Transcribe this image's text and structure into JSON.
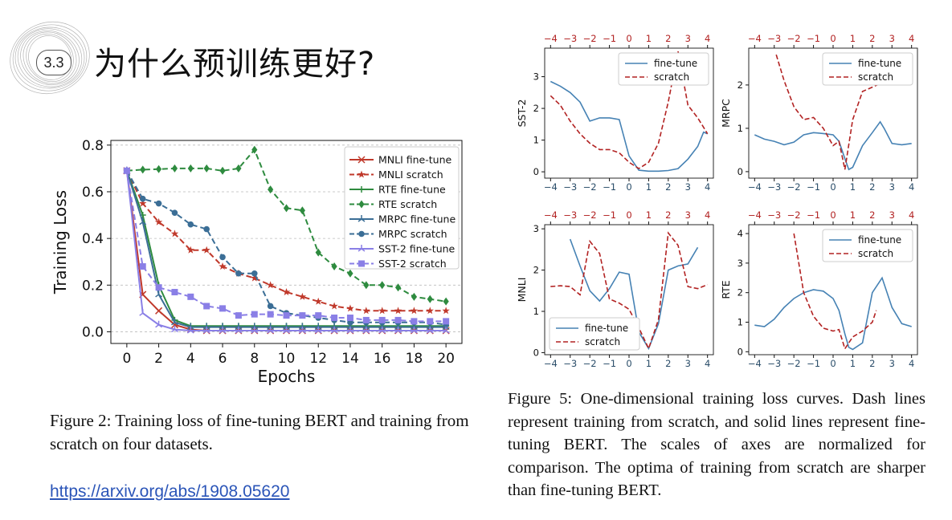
{
  "slide": {
    "section_number": "3.3",
    "title": "为什么预训练更好?",
    "link": "https://arxiv.org/abs/1908.05620"
  },
  "figure2": {
    "caption": "Figure 2: Training loss of fine-tuning BERT and training from scratch on four datasets."
  },
  "figure5": {
    "caption": "Figure 5: One-dimensional training loss curves. Dash lines represent training from scratch, and solid lines represent fine-tuning BERT. The scales of axes are normalized for comparison. The optima of training from scratch are sharper than fine-tuning BERT."
  },
  "colors": {
    "mnli": "#c0392b",
    "rte": "#2e8b3f",
    "mrpc": "#3b6e96",
    "sst2": "#8a7fe6",
    "finetune": "#4682b4",
    "scratch": "#b22222"
  },
  "chart_data": [
    {
      "type": "line",
      "title": "",
      "xlabel": "Epochs",
      "ylabel": "Training Loss",
      "xlim": [
        -1,
        21
      ],
      "ylim": [
        -0.05,
        0.82
      ],
      "xticks": [
        "0",
        "2",
        "4",
        "6",
        "8",
        "10",
        "12",
        "14",
        "16",
        "18",
        "20"
      ],
      "yticks": [
        "0.0",
        "0.2",
        "0.4",
        "0.6",
        "0.8"
      ],
      "grid": true,
      "legend_position": "top-right",
      "x": [
        0,
        1,
        2,
        3,
        4,
        5,
        6,
        7,
        8,
        9,
        10,
        11,
        12,
        13,
        14,
        15,
        16,
        17,
        18,
        19,
        20
      ],
      "series": [
        {
          "name": "MNLI fine-tune",
          "color": "#c0392b",
          "dash": false,
          "marker": "x",
          "values": [
            0.69,
            0.16,
            0.09,
            0.03,
            0.01,
            0.005,
            0.005,
            0.005,
            0.005,
            0.005,
            0.005,
            0.005,
            0.005,
            0.005,
            0.005,
            0.005,
            0.005,
            0.005,
            0.005,
            0.005,
            0.005
          ]
        },
        {
          "name": "MNLI scratch",
          "color": "#c0392b",
          "dash": true,
          "marker": "star",
          "values": [
            0.69,
            0.55,
            0.47,
            0.42,
            0.35,
            0.35,
            0.28,
            0.25,
            0.23,
            0.2,
            0.17,
            0.15,
            0.13,
            0.11,
            0.1,
            0.09,
            0.09,
            0.09,
            0.09,
            0.09,
            0.09
          ]
        },
        {
          "name": "RTE fine-tune",
          "color": "#2e8b3f",
          "dash": false,
          "marker": "plus",
          "values": [
            0.69,
            0.5,
            0.2,
            0.05,
            0.025,
            0.025,
            0.025,
            0.025,
            0.025,
            0.025,
            0.025,
            0.025,
            0.025,
            0.025,
            0.025,
            0.025,
            0.025,
            0.025,
            0.025,
            0.025,
            0.025
          ]
        },
        {
          "name": "RTE scratch",
          "color": "#2e8b3f",
          "dash": true,
          "marker": "diamond",
          "values": [
            0.69,
            0.695,
            0.697,
            0.7,
            0.7,
            0.7,
            0.69,
            0.7,
            0.78,
            0.61,
            0.53,
            0.52,
            0.34,
            0.28,
            0.25,
            0.2,
            0.2,
            0.19,
            0.15,
            0.14,
            0.13
          ]
        },
        {
          "name": "MRPC fine-tune",
          "color": "#3b6e96",
          "dash": false,
          "marker": "tri",
          "values": [
            0.69,
            0.47,
            0.16,
            0.04,
            0.02,
            0.02,
            0.02,
            0.02,
            0.02,
            0.02,
            0.02,
            0.02,
            0.02,
            0.02,
            0.02,
            0.02,
            0.02,
            0.02,
            0.02,
            0.02,
            0.02
          ]
        },
        {
          "name": "MRPC scratch",
          "color": "#3b6e96",
          "dash": true,
          "marker": "circle",
          "values": [
            0.69,
            0.57,
            0.55,
            0.51,
            0.46,
            0.44,
            0.32,
            0.25,
            0.25,
            0.11,
            0.08,
            0.07,
            0.06,
            0.05,
            0.04,
            0.04,
            0.04,
            0.04,
            0.04,
            0.04,
            0.03
          ]
        },
        {
          "name": "SST-2 fine-tune",
          "color": "#8a7fe6",
          "dash": false,
          "marker": "tri",
          "values": [
            0.69,
            0.08,
            0.03,
            0.01,
            0.005,
            0.005,
            0.005,
            0.005,
            0.005,
            0.005,
            0.005,
            0.005,
            0.005,
            0.005,
            0.005,
            0.005,
            0.005,
            0.005,
            0.005,
            0.005,
            0.005
          ]
        },
        {
          "name": "SST-2 scratch",
          "color": "#8a7fe6",
          "dash": true,
          "marker": "square",
          "values": [
            0.69,
            0.28,
            0.19,
            0.17,
            0.15,
            0.11,
            0.1,
            0.07,
            0.075,
            0.075,
            0.07,
            0.07,
            0.07,
            0.06,
            0.06,
            0.05,
            0.05,
            0.05,
            0.045,
            0.045,
            0.045
          ]
        }
      ]
    },
    {
      "type": "line",
      "title": "",
      "ylabel": "SST-2",
      "legend_position": "top-right",
      "xlim": [
        -4.3,
        4.3
      ],
      "ylim": [
        -0.2,
        3.9
      ],
      "xticks": [
        "−4",
        "−3",
        "−2",
        "−1",
        "0",
        "1",
        "2",
        "3",
        "4"
      ],
      "yticks": [
        "0",
        "1",
        "2",
        "3"
      ],
      "top_xticks": [
        "−4",
        "−3",
        "−2",
        "−1",
        "0",
        "1",
        "2",
        "3",
        "4"
      ],
      "series": [
        {
          "name": "fine-tune",
          "dash": false,
          "color": "#4682b4",
          "x": [
            -4,
            -3.5,
            -3,
            -2.5,
            -2,
            -1.5,
            -1,
            -0.5,
            0,
            0.5,
            1,
            1.5,
            2,
            2.5,
            3,
            3.5,
            3.8,
            4
          ],
          "values": [
            2.85,
            2.7,
            2.5,
            2.2,
            1.6,
            1.7,
            1.7,
            1.65,
            0.5,
            0.05,
            0.02,
            0.02,
            0.04,
            0.1,
            0.4,
            0.8,
            1.25,
            1.2
          ]
        },
        {
          "name": "scratch",
          "dash": true,
          "color": "#b22222",
          "x": [
            -4,
            -3.5,
            -3,
            -2.5,
            -2,
            -1.5,
            -1,
            -0.5,
            0,
            0.5,
            1,
            1.5,
            2,
            2.5,
            3,
            3.5,
            4
          ],
          "values": [
            2.4,
            2.1,
            1.6,
            1.2,
            0.9,
            0.7,
            0.7,
            0.6,
            0.3,
            0.1,
            0.3,
            0.9,
            2.2,
            3.8,
            2.1,
            1.7,
            1.2
          ]
        }
      ]
    },
    {
      "type": "line",
      "title": "",
      "ylabel": "MRPC",
      "legend_position": "top-right",
      "xlim": [
        -4.3,
        4.3
      ],
      "ylim": [
        -0.15,
        2.85
      ],
      "xticks": [
        "−4",
        "−3",
        "−2",
        "−1",
        "0",
        "1",
        "2",
        "3",
        "4"
      ],
      "yticks": [
        "0",
        "1",
        "2"
      ],
      "top_xticks": [
        "−4",
        "−3",
        "−2",
        "−1",
        "0",
        "1",
        "2",
        "3",
        "4"
      ],
      "series": [
        {
          "name": "fine-tune",
          "dash": false,
          "color": "#4682b4",
          "x": [
            -4,
            -3.5,
            -3,
            -2.5,
            -2,
            -1.5,
            -1,
            -0.5,
            0,
            0.3,
            0.6,
            0.8,
            1,
            1.5,
            2,
            2.4,
            2.6,
            3,
            3.5,
            4
          ],
          "values": [
            0.85,
            0.75,
            0.7,
            0.62,
            0.68,
            0.85,
            0.9,
            0.88,
            0.85,
            0.7,
            0.3,
            0.05,
            0.1,
            0.6,
            0.9,
            1.15,
            1.0,
            0.65,
            0.62,
            0.65
          ]
        },
        {
          "name": "scratch",
          "dash": true,
          "color": "#b22222",
          "x": [
            -2.9,
            -2.5,
            -2,
            -1.5,
            -1,
            -0.5,
            0,
            0.3,
            0.6,
            1,
            1.5,
            2,
            2.5,
            3
          ],
          "values": [
            2.7,
            2.1,
            1.5,
            1.2,
            1.25,
            1.0,
            0.6,
            0.7,
            0.05,
            1.2,
            1.85,
            1.95,
            2.05,
            2.15
          ]
        }
      ]
    },
    {
      "type": "line",
      "title": "",
      "ylabel": "MNLI",
      "legend_position": "bottom-left",
      "xlim": [
        -4.3,
        4.3
      ],
      "ylim": [
        -0.05,
        3.1
      ],
      "xticks": [
        "−4",
        "−3",
        "−2",
        "−1",
        "0",
        "1",
        "2",
        "3",
        "4"
      ],
      "yticks": [
        "0",
        "1",
        "2",
        "3"
      ],
      "top_xticks": [
        "−4",
        "−3",
        "−2",
        "−1",
        "0",
        "1",
        "2",
        "3",
        "4"
      ],
      "series": [
        {
          "name": "fine-tune",
          "dash": false,
          "color": "#4682b4",
          "x": [
            -3,
            -2.5,
            -2,
            -1.5,
            -1,
            -0.5,
            0,
            0.5,
            1,
            1.5,
            2,
            2.5,
            3,
            3.5
          ],
          "values": [
            2.75,
            2.1,
            1.5,
            1.25,
            1.55,
            1.95,
            1.9,
            0.5,
            0.1,
            0.7,
            2.0,
            2.1,
            2.15,
            2.55
          ]
        },
        {
          "name": "scratch",
          "dash": true,
          "color": "#b22222",
          "x": [
            -4,
            -3.5,
            -3,
            -2.5,
            -2,
            -1.5,
            -1,
            -0.5,
            0,
            0.5,
            1,
            1.5,
            2,
            2.5,
            3,
            3.5,
            4
          ],
          "values": [
            1.6,
            1.62,
            1.6,
            1.4,
            2.7,
            2.4,
            1.3,
            1.2,
            1.05,
            0.6,
            0.1,
            0.8,
            2.9,
            2.6,
            1.6,
            1.55,
            1.65
          ]
        }
      ]
    },
    {
      "type": "line",
      "title": "",
      "ylabel": "RTE",
      "legend_position": "top-right",
      "xlim": [
        -4.3,
        4.3
      ],
      "ylim": [
        -0.1,
        4.3
      ],
      "xticks": [
        "−4",
        "−3",
        "−2",
        "−1",
        "0",
        "1",
        "2",
        "3",
        "4"
      ],
      "yticks": [
        "0",
        "1",
        "2",
        "3",
        "4"
      ],
      "top_xticks": [
        "−4",
        "−3",
        "−2",
        "−1",
        "0",
        "1",
        "2",
        "3",
        "4"
      ],
      "series": [
        {
          "name": "fine-tune",
          "dash": false,
          "color": "#4682b4",
          "x": [
            -4,
            -3.5,
            -3,
            -2.5,
            -2,
            -1.5,
            -1,
            -0.5,
            0,
            0.3,
            0.6,
            0.8,
            1,
            1.5,
            2,
            2.5,
            3,
            3.5,
            4
          ],
          "values": [
            0.9,
            0.85,
            1.1,
            1.5,
            1.8,
            2.0,
            2.1,
            2.05,
            1.8,
            1.4,
            0.6,
            0.15,
            0.08,
            0.3,
            2.0,
            2.5,
            1.5,
            0.95,
            0.85
          ]
        },
        {
          "name": "scratch",
          "dash": true,
          "color": "#b22222",
          "x": [
            -2,
            -1.5,
            -1,
            -0.5,
            0,
            0.3,
            0.6,
            1,
            1.5,
            2,
            2.2
          ],
          "values": [
            4.0,
            2.0,
            1.2,
            0.8,
            0.7,
            0.75,
            0.1,
            0.5,
            0.7,
            1.0,
            1.4
          ]
        }
      ]
    }
  ]
}
